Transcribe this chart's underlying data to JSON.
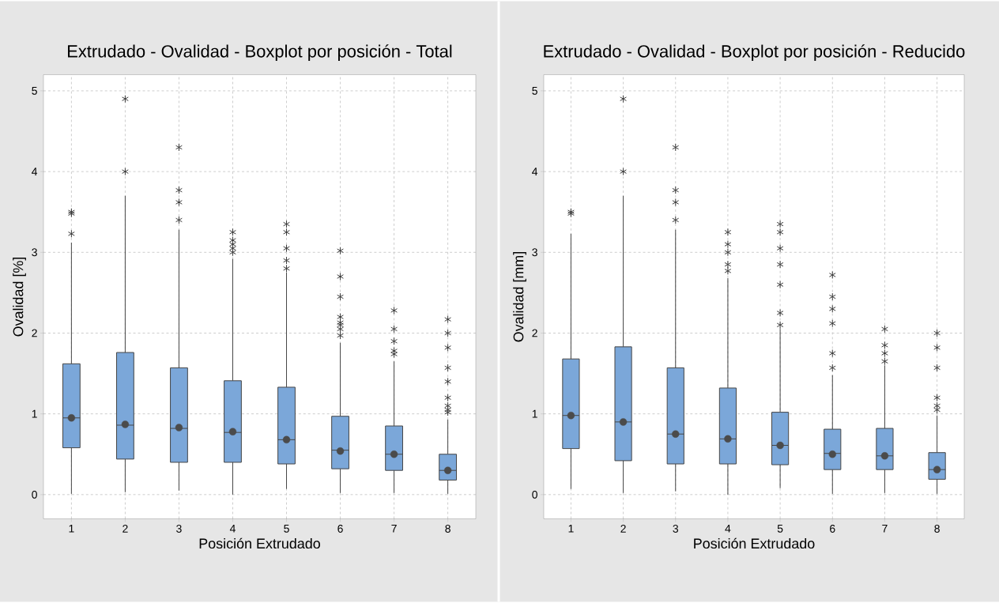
{
  "chart_data": [
    {
      "type": "box",
      "title": "Extrudado - Ovalidad - Boxplot por posición - Total",
      "xlabel": "Posición Extrudado",
      "ylabel": "Ovalidad [%]",
      "categories": [
        "1",
        "2",
        "3",
        "4",
        "5",
        "6",
        "7",
        "8"
      ],
      "color": "#7ba7d9",
      "marker": "star",
      "grid": true,
      "ylim": [
        -0.3,
        5.2
      ],
      "yticks": [
        0,
        1,
        2,
        3,
        4,
        5
      ],
      "boxes": [
        {
          "low": 0.01,
          "q1": 0.58,
          "median": 0.95,
          "q3": 1.62,
          "high": 3.12,
          "mean": 0.95,
          "outliers": [
            3.23,
            3.48,
            3.5
          ]
        },
        {
          "low": 0.03,
          "q1": 0.44,
          "median": 0.86,
          "q3": 1.76,
          "high": 3.7,
          "mean": 0.87,
          "outliers": [
            4.0,
            4.9
          ]
        },
        {
          "low": 0.05,
          "q1": 0.4,
          "median": 0.82,
          "q3": 1.57,
          "high": 3.28,
          "mean": 0.83,
          "outliers": [
            3.4,
            3.62,
            3.77,
            4.3
          ]
        },
        {
          "low": 0.0,
          "q1": 0.4,
          "median": 0.77,
          "q3": 1.41,
          "high": 2.92,
          "mean": 0.78,
          "outliers": [
            3.0,
            3.05,
            3.1,
            3.15,
            3.25
          ]
        },
        {
          "low": 0.07,
          "q1": 0.38,
          "median": 0.68,
          "q3": 1.33,
          "high": 2.75,
          "mean": 0.68,
          "outliers": [
            2.8,
            2.9,
            3.05,
            3.25,
            3.35
          ]
        },
        {
          "low": 0.02,
          "q1": 0.32,
          "median": 0.55,
          "q3": 0.97,
          "high": 1.88,
          "mean": 0.54,
          "outliers": [
            1.97,
            2.05,
            2.1,
            2.13,
            2.2,
            2.45,
            2.7,
            3.02
          ]
        },
        {
          "low": 0.02,
          "q1": 0.3,
          "median": 0.5,
          "q3": 0.85,
          "high": 1.65,
          "mean": 0.5,
          "outliers": [
            1.74,
            1.78,
            1.9,
            2.05,
            2.28
          ]
        },
        {
          "low": 0.01,
          "q1": 0.18,
          "median": 0.3,
          "q3": 0.5,
          "high": 0.93,
          "mean": 0.3,
          "outliers": [
            1.02,
            1.05,
            1.1,
            1.2,
            1.4,
            1.57,
            1.82,
            2.0,
            2.17
          ]
        }
      ]
    },
    {
      "type": "box",
      "title": "Extrudado - Ovalidad - Boxplot por posición - Reducido",
      "xlabel": "Posición Extrudado",
      "ylabel": "Ovalidad [mm]",
      "categories": [
        "1",
        "2",
        "3",
        "4",
        "5",
        "6",
        "7",
        "8"
      ],
      "color": "#7ba7d9",
      "marker": "star",
      "grid": true,
      "ylim": [
        -0.3,
        5.2
      ],
      "yticks": [
        0,
        1,
        2,
        3,
        4,
        5
      ],
      "boxes": [
        {
          "low": 0.07,
          "q1": 0.57,
          "median": 0.98,
          "q3": 1.68,
          "high": 3.23,
          "mean": 0.98,
          "outliers": [
            3.48,
            3.5
          ]
        },
        {
          "low": 0.02,
          "q1": 0.42,
          "median": 0.9,
          "q3": 1.83,
          "high": 3.7,
          "mean": 0.9,
          "outliers": [
            4.0,
            4.9
          ]
        },
        {
          "low": 0.04,
          "q1": 0.38,
          "median": 0.75,
          "q3": 1.57,
          "high": 3.28,
          "mean": 0.75,
          "outliers": [
            3.4,
            3.62,
            3.77,
            4.3
          ]
        },
        {
          "low": 0.0,
          "q1": 0.38,
          "median": 0.69,
          "q3": 1.32,
          "high": 2.68,
          "mean": 0.69,
          "outliers": [
            2.77,
            2.85,
            3.0,
            3.1,
            3.25
          ]
        },
        {
          "low": 0.08,
          "q1": 0.37,
          "median": 0.61,
          "q3": 1.02,
          "high": 2.05,
          "mean": 0.61,
          "outliers": [
            2.1,
            2.25,
            2.6,
            2.85,
            3.05,
            3.25,
            3.35
          ]
        },
        {
          "low": 0.01,
          "q1": 0.31,
          "median": 0.51,
          "q3": 0.81,
          "high": 1.48,
          "mean": 0.5,
          "outliers": [
            1.57,
            1.75,
            2.12,
            2.3,
            2.45,
            2.72
          ]
        },
        {
          "low": 0.02,
          "q1": 0.31,
          "median": 0.48,
          "q3": 0.82,
          "high": 1.6,
          "mean": 0.48,
          "outliers": [
            1.65,
            1.75,
            1.85,
            2.05
          ]
        },
        {
          "low": 0.01,
          "q1": 0.19,
          "median": 0.31,
          "q3": 0.52,
          "high": 0.98,
          "mean": 0.31,
          "outliers": [
            1.05,
            1.1,
            1.2,
            1.57,
            1.82,
            2.0
          ]
        }
      ]
    }
  ]
}
